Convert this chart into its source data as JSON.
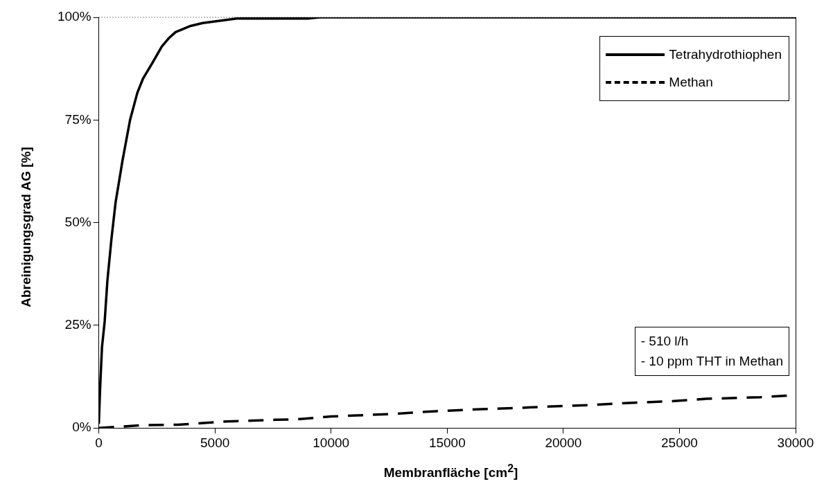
{
  "chart_data": {
    "type": "line",
    "xlabel": "Membranfläche [cm$^{2}$]",
    "ylabel": "Abreinigungsgrad AG [%]",
    "xlim": [
      0,
      30000
    ],
    "xticks": [
      0,
      5000,
      10000,
      15000,
      20000,
      25000,
      30000
    ],
    "ylim": [
      0,
      100
    ],
    "yticks": [
      {
        "value": 0,
        "label": "0%"
      },
      {
        "value": 25,
        "label": "25%"
      },
      {
        "value": 50,
        "label": "50%"
      },
      {
        "value": 75,
        "label": "75%"
      },
      {
        "value": 100,
        "label": "100%"
      }
    ],
    "grid": false,
    "legend": "top right",
    "marker": "none",
    "series": [
      {
        "name": "Tetrahydrothiophen",
        "color": "#000000",
        "line_style": "solid",
        "x": [
          0,
          54,
          135,
          253,
          371,
          543,
          723,
          900,
          1016,
          1345,
          1658,
          1897,
          2307,
          2713,
          3009,
          3305,
          3950,
          4477,
          5940,
          9000,
          9500,
          30000
        ],
        "values": [
          1,
          9.4,
          19.6,
          26,
          36,
          46,
          55,
          61,
          65,
          75,
          81.6,
          85,
          88.9,
          92.9,
          94.9,
          96.4,
          97.9,
          98.6,
          99.7,
          99.7,
          100,
          100
        ]
      },
      {
        "name": "Methan",
        "color": "#000000",
        "line_style": "dashed",
        "x": [
          0,
          1965,
          3400,
          5500,
          7660,
          8450,
          10020,
          12570,
          14530,
          16500,
          18070,
          19250,
          21220,
          23180,
          24560,
          26140,
          28500,
          30000
        ],
        "values": [
          0,
          0.7,
          0.8,
          1.6,
          2.0,
          2.1,
          2.8,
          3.4,
          4.1,
          4.6,
          4.9,
          5.2,
          5.6,
          6.2,
          6.5,
          7.1,
          7.5,
          8.0
        ]
      }
    ],
    "ref_lines": [
      {
        "axis": "y",
        "value": 100,
        "line_style": "dotted",
        "color": "#000000"
      }
    ],
    "annotations": [
      "- 510 l/h\n- 10 ppm THT in Methan"
    ]
  }
}
